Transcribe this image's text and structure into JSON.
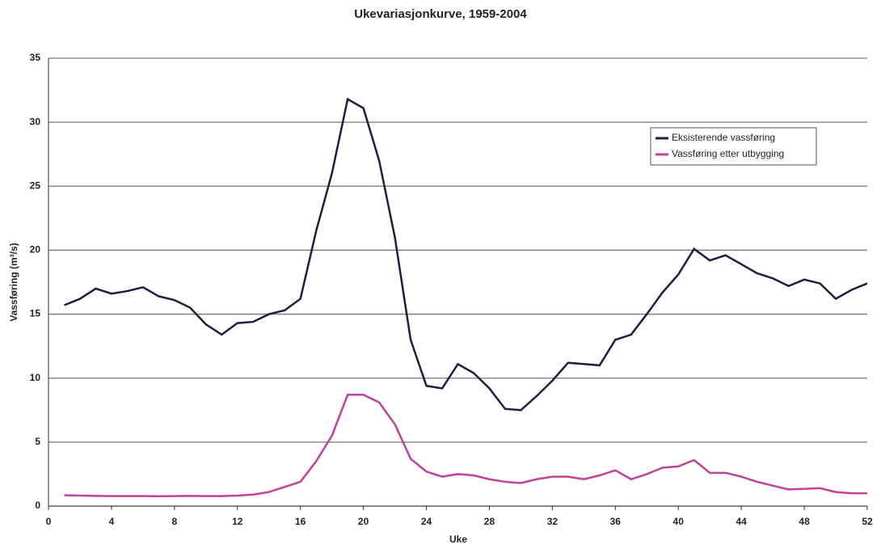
{
  "chart_data": {
    "type": "line",
    "title": "Ukevariasjonkurve, 1959-2004",
    "x_label": "Uke",
    "y_label": "Vassføring (m³/s)",
    "x": [
      1,
      2,
      3,
      4,
      5,
      6,
      7,
      8,
      9,
      10,
      11,
      12,
      13,
      14,
      15,
      16,
      17,
      18,
      19,
      20,
      21,
      22,
      23,
      24,
      25,
      26,
      27,
      28,
      29,
      30,
      31,
      32,
      33,
      34,
      35,
      36,
      37,
      38,
      39,
      40,
      41,
      42,
      43,
      44,
      45,
      46,
      47,
      48,
      49,
      50,
      51,
      52
    ],
    "series": [
      {
        "name": "Eksisterende vassføring",
        "color": "#1a1f45",
        "values": [
          15.7,
          16.2,
          17.0,
          16.6,
          16.8,
          17.1,
          16.4,
          16.1,
          15.5,
          14.2,
          13.4,
          14.3,
          14.4,
          15.0,
          15.3,
          16.2,
          21.5,
          26.0,
          31.8,
          31.1,
          27.0,
          21.0,
          13.0,
          9.4,
          9.2,
          11.1,
          10.4,
          9.2,
          7.6,
          7.5,
          8.6,
          9.8,
          11.2,
          11.1,
          11.0,
          13.0,
          13.4,
          15.0,
          16.7,
          18.1,
          20.1,
          19.2,
          19.6,
          18.9,
          18.2,
          17.8,
          17.2,
          17.7,
          17.4,
          16.2,
          16.9,
          17.4
        ]
      },
      {
        "name": "Vassføring etter utbygging",
        "color": "#c0409a",
        "values": [
          0.85,
          0.82,
          0.8,
          0.78,
          0.78,
          0.78,
          0.77,
          0.78,
          0.8,
          0.78,
          0.78,
          0.82,
          0.9,
          1.1,
          1.5,
          1.9,
          3.5,
          5.5,
          8.7,
          8.7,
          8.1,
          6.4,
          3.7,
          2.7,
          2.3,
          2.5,
          2.4,
          2.1,
          1.9,
          1.8,
          2.1,
          2.3,
          2.3,
          2.1,
          2.4,
          2.8,
          2.1,
          2.5,
          3.0,
          3.1,
          3.6,
          2.6,
          2.6,
          2.3,
          1.9,
          1.6,
          1.3,
          1.35,
          1.4,
          1.1,
          1.0,
          1.0
        ]
      }
    ],
    "xlim": [
      0,
      52
    ],
    "xticks": [
      0,
      4,
      8,
      12,
      16,
      20,
      24,
      28,
      32,
      36,
      40,
      44,
      48,
      52
    ],
    "ylim": [
      0,
      35
    ],
    "yticks": [
      0,
      5,
      10,
      15,
      20,
      25,
      30,
      35
    ],
    "grid": true,
    "legend": "upper right"
  }
}
